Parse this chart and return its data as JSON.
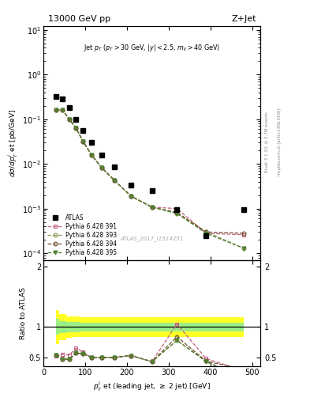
{
  "title_left": "13000 GeV pp",
  "title_right": "Z+Jet",
  "annotation": "Jet $p_T$ ($p_T > 30$ GeV, $|y| < 2.5$, $m_{ll} > 40$ GeV)",
  "watermark": "ATLAS_2017_I1514251",
  "right_label": "mcplots.cern.ch [arXiv:1306.3436]",
  "rivet_label": "Rivet 3.1.10, ≥ 2.7M events",
  "xlabel": "$p_T^j$ et (leading jet, $\\geq$ 2 jet) [GeV]",
  "ylabel_main": "$d\\sigma/dp_T^j$ et [pb/GeV]",
  "ylabel_ratio": "Ratio to ATLAS",
  "atlas_x": [
    30,
    46,
    62,
    78,
    95,
    115,
    140,
    170,
    210,
    260,
    320,
    390,
    480
  ],
  "atlas_y": [
    0.32,
    0.28,
    0.18,
    0.1,
    0.055,
    0.03,
    0.016,
    0.0085,
    0.0034,
    0.0025,
    0.00095,
    0.00025,
    0.00095
  ],
  "py391_x": [
    30,
    46,
    62,
    78,
    95,
    115,
    140,
    170,
    210,
    260,
    320,
    390,
    480
  ],
  "py391_y": [
    0.16,
    0.16,
    0.1,
    0.065,
    0.033,
    0.016,
    0.0082,
    0.0043,
    0.0019,
    0.00108,
    0.001,
    0.00028,
    0.00026
  ],
  "py393_x": [
    30,
    46,
    62,
    78,
    95,
    115,
    140,
    170,
    210,
    260,
    320,
    390,
    480
  ],
  "py393_y": [
    0.16,
    0.16,
    0.1,
    0.063,
    0.032,
    0.016,
    0.0082,
    0.0043,
    0.0019,
    0.00108,
    0.00078,
    0.0003,
    0.00013
  ],
  "py394_x": [
    30,
    46,
    62,
    78,
    95,
    115,
    140,
    170,
    210,
    260,
    320,
    390,
    480
  ],
  "py394_y": [
    0.16,
    0.16,
    0.1,
    0.063,
    0.032,
    0.016,
    0.0082,
    0.0043,
    0.0019,
    0.00108,
    0.00082,
    0.0003,
    0.00028
  ],
  "py395_x": [
    30,
    46,
    62,
    78,
    95,
    115,
    140,
    170,
    210,
    260,
    320,
    390,
    480
  ],
  "py395_y": [
    0.16,
    0.16,
    0.1,
    0.063,
    0.032,
    0.016,
    0.0082,
    0.0043,
    0.0019,
    0.00108,
    0.00078,
    0.00028,
    0.00013
  ],
  "ratio391_y": [
    0.52,
    0.55,
    0.54,
    0.65,
    0.59,
    0.5,
    0.5,
    0.5,
    0.53,
    0.43,
    1.05,
    0.48,
    0.28
  ],
  "ratio393_y": [
    0.54,
    0.47,
    0.47,
    0.57,
    0.56,
    0.5,
    0.5,
    0.5,
    0.53,
    0.43,
    0.78,
    0.44,
    0.14
  ],
  "ratio394_y": [
    0.54,
    0.47,
    0.47,
    0.57,
    0.56,
    0.5,
    0.5,
    0.5,
    0.53,
    0.43,
    0.84,
    0.44,
    0.3
  ],
  "ratio395_y": [
    0.54,
    0.47,
    0.47,
    0.57,
    0.56,
    0.5,
    0.5,
    0.5,
    0.53,
    0.43,
    0.78,
    0.43,
    0.14
  ],
  "band_x": [
    30,
    46,
    62,
    78,
    95,
    115,
    140,
    170,
    210,
    260,
    320,
    390,
    480
  ],
  "band_green_lo": [
    0.87,
    0.9,
    0.91,
    0.92,
    0.93,
    0.93,
    0.93,
    0.93,
    0.93,
    0.93,
    0.93,
    0.93,
    0.93
  ],
  "band_green_hi": [
    1.13,
    1.1,
    1.09,
    1.08,
    1.07,
    1.07,
    1.07,
    1.07,
    1.07,
    1.07,
    1.07,
    1.07,
    1.07
  ],
  "band_yellow_lo": [
    0.72,
    0.78,
    0.82,
    0.83,
    0.84,
    0.84,
    0.84,
    0.84,
    0.84,
    0.84,
    0.84,
    0.84,
    0.84
  ],
  "band_yellow_hi": [
    1.28,
    1.22,
    1.18,
    1.17,
    1.16,
    1.16,
    1.16,
    1.16,
    1.16,
    1.16,
    1.16,
    1.16,
    1.16
  ],
  "color_391": "#c06080",
  "color_393": "#909050",
  "color_394": "#705030",
  "color_395": "#508030",
  "xlim": [
    0,
    520
  ],
  "ylim_main": [
    7e-05,
    12.0
  ],
  "ylim_ratio": [
    0.35,
    2.1
  ]
}
